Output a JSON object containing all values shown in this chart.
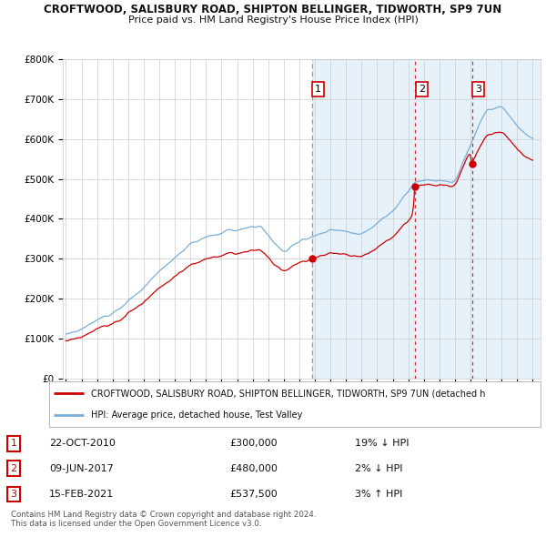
{
  "title_line1": "CROFTWOOD, SALISBURY ROAD, SHIPTON BELLINGER, TIDWORTH, SP9 7UN",
  "title_line2": "Price paid vs. HM Land Registry's House Price Index (HPI)",
  "background_color": "#ffffff",
  "plot_bg_color": "#ffffff",
  "grid_color": "#cccccc",
  "hpi_color": "#7aaed6",
  "hpi_fill_color": "#d6e8f5",
  "price_color": "#cc0000",
  "ylim": [
    0,
    800000
  ],
  "yticks": [
    0,
    100000,
    200000,
    300000,
    400000,
    500000,
    600000,
    700000,
    800000
  ],
  "ytick_labels": [
    "£0",
    "£100K",
    "£200K",
    "£300K",
    "£400K",
    "£500K",
    "£600K",
    "£700K",
    "£800K"
  ],
  "x_start_year": 1995,
  "x_end_year": 2025,
  "sales": [
    {
      "label": "1",
      "year": 2010.8,
      "price": 300000,
      "vline_style": "--",
      "vline_color": "#aaaaaa"
    },
    {
      "label": "2",
      "year": 2017.45,
      "price": 480000,
      "vline_style": "--",
      "vline_color": "#cc0000"
    },
    {
      "label": "3",
      "year": 2021.1,
      "price": 537500,
      "vline_style": "--",
      "vline_color": "#cc0000"
    }
  ],
  "legend_line1": "CROFTWOOD, SALISBURY ROAD, SHIPTON BELLINGER, TIDWORTH, SP9 7UN (detached h",
  "legend_line2": "HPI: Average price, detached house, Test Valley",
  "table_rows": [
    {
      "num": "1",
      "date": "22-OCT-2010",
      "price": "£300,000",
      "pct": "19% ↓ HPI"
    },
    {
      "num": "2",
      "date": "09-JUN-2017",
      "price": "£480,000",
      "pct": "2% ↓ HPI"
    },
    {
      "num": "3",
      "date": "15-FEB-2021",
      "price": "£537,500",
      "pct": "3% ↑ HPI"
    }
  ],
  "footer": "Contains HM Land Registry data © Crown copyright and database right 2024.\nThis data is licensed under the Open Government Licence v3.0."
}
